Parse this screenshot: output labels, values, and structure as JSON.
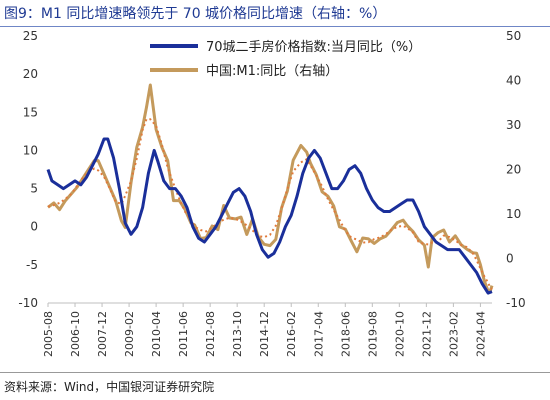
{
  "figure_title": "图9：M1 同比增速略领先于 70 城价格同比增速（右轴：%）",
  "source_note": "资料来源：Wind，中国银河证券研究院",
  "colors": {
    "series_a": "#1a2f9a",
    "series_b": "#c49a5c",
    "trend": "#e07a3a",
    "title": "#1f3a93"
  },
  "chart_data": {
    "type": "line",
    "title": "",
    "xlabel": "",
    "ylabel": "",
    "x_ticks": [
      "2005-08",
      "2006-10",
      "2007-12",
      "2009-02",
      "2010-04",
      "2011-06",
      "2012-08",
      "2013-10",
      "2014-12",
      "2016-02",
      "2017-04",
      "2018-06",
      "2019-08",
      "2020-10",
      "2021-12",
      "2023-02",
      "2024-04"
    ],
    "x_range": [
      "2005-08",
      "2024-10"
    ],
    "y_left": {
      "range": [
        -10,
        25
      ],
      "ticks": [
        -10,
        -5,
        0,
        5,
        10,
        15,
        20,
        25
      ]
    },
    "y_right": {
      "range": [
        -10,
        50
      ],
      "ticks": [
        -10,
        0,
        10,
        20,
        30,
        40,
        50
      ]
    },
    "legend_position": "top-right",
    "series": [
      {
        "name": "70城二手房价格指数:当月同比（%）",
        "axis": "left",
        "style": "solid",
        "points": [
          [
            "2005-08",
            7.5
          ],
          [
            "2005-10",
            6
          ],
          [
            "2006-01",
            5.5
          ],
          [
            "2006-04",
            5
          ],
          [
            "2006-07",
            5.5
          ],
          [
            "2006-10",
            6
          ],
          [
            "2007-01",
            5.5
          ],
          [
            "2007-04",
            6.5
          ],
          [
            "2007-07",
            8
          ],
          [
            "2007-10",
            9.5
          ],
          [
            "2008-01",
            11.5
          ],
          [
            "2008-03",
            11.5
          ],
          [
            "2008-06",
            9
          ],
          [
            "2008-09",
            5
          ],
          [
            "2008-12",
            0.5
          ],
          [
            "2009-03",
            -1
          ],
          [
            "2009-06",
            0
          ],
          [
            "2009-09",
            2.5
          ],
          [
            "2009-12",
            7
          ],
          [
            "2010-03",
            10
          ],
          [
            "2010-05",
            8.5
          ],
          [
            "2010-08",
            6
          ],
          [
            "2010-11",
            5
          ],
          [
            "2011-02",
            5
          ],
          [
            "2011-05",
            4
          ],
          [
            "2011-08",
            2.5
          ],
          [
            "2011-11",
            0
          ],
          [
            "2012-02",
            -1.5
          ],
          [
            "2012-05",
            -2
          ],
          [
            "2012-08",
            -1
          ],
          [
            "2012-11",
            0
          ],
          [
            "2013-02",
            1.5
          ],
          [
            "2013-05",
            3
          ],
          [
            "2013-08",
            4.5
          ],
          [
            "2013-11",
            5
          ],
          [
            "2014-02",
            4
          ],
          [
            "2014-05",
            2
          ],
          [
            "2014-08",
            -1
          ],
          [
            "2014-11",
            -3
          ],
          [
            "2015-02",
            -4
          ],
          [
            "2015-05",
            -3.5
          ],
          [
            "2015-08",
            -2
          ],
          [
            "2015-11",
            0
          ],
          [
            "2016-02",
            1.5
          ],
          [
            "2016-05",
            4
          ],
          [
            "2016-08",
            7
          ],
          [
            "2016-11",
            9
          ],
          [
            "2017-02",
            10
          ],
          [
            "2017-05",
            9
          ],
          [
            "2017-08",
            7
          ],
          [
            "2017-11",
            5
          ],
          [
            "2018-02",
            5
          ],
          [
            "2018-05",
            6
          ],
          [
            "2018-08",
            7.5
          ],
          [
            "2018-11",
            8
          ],
          [
            "2019-02",
            7
          ],
          [
            "2019-05",
            5
          ],
          [
            "2019-08",
            3.5
          ],
          [
            "2019-11",
            2.5
          ],
          [
            "2020-02",
            2
          ],
          [
            "2020-05",
            2
          ],
          [
            "2020-08",
            2.5
          ],
          [
            "2020-11",
            3
          ],
          [
            "2021-02",
            3.5
          ],
          [
            "2021-05",
            3.5
          ],
          [
            "2021-08",
            2
          ],
          [
            "2021-11",
            0
          ],
          [
            "2022-02",
            -1
          ],
          [
            "2022-05",
            -2
          ],
          [
            "2022-08",
            -2.5
          ],
          [
            "2022-11",
            -3
          ],
          [
            "2023-02",
            -3
          ],
          [
            "2023-05",
            -3
          ],
          [
            "2023-08",
            -4
          ],
          [
            "2023-11",
            -5
          ],
          [
            "2024-02",
            -6
          ],
          [
            "2024-05",
            -7.5
          ],
          [
            "2024-08",
            -8.7
          ],
          [
            "2024-10",
            -8.5
          ]
        ]
      },
      {
        "name": "中国:M1:同比（右轴）",
        "axis": "right",
        "style": "solid",
        "points": [
          [
            "2005-08",
            11.5
          ],
          [
            "2005-11",
            12.5
          ],
          [
            "2006-02",
            11
          ],
          [
            "2006-05",
            13
          ],
          [
            "2006-08",
            14.5
          ],
          [
            "2006-11",
            16
          ],
          [
            "2007-02",
            18
          ],
          [
            "2007-05",
            20
          ],
          [
            "2007-08",
            22
          ],
          [
            "2007-10",
            22
          ],
          [
            "2008-01",
            19
          ],
          [
            "2008-04",
            16
          ],
          [
            "2008-07",
            13
          ],
          [
            "2008-10",
            8.5
          ],
          [
            "2008-12",
            7
          ],
          [
            "2009-03",
            17
          ],
          [
            "2009-06",
            25
          ],
          [
            "2009-09",
            29.5
          ],
          [
            "2009-11",
            34
          ],
          [
            "2010-01",
            39
          ],
          [
            "2010-04",
            29
          ],
          [
            "2010-07",
            25
          ],
          [
            "2010-10",
            22
          ],
          [
            "2011-01",
            13
          ],
          [
            "2011-04",
            13
          ],
          [
            "2011-07",
            11
          ],
          [
            "2011-10",
            8
          ],
          [
            "2011-12",
            7.5
          ],
          [
            "2012-03",
            4.5
          ],
          [
            "2012-06",
            4.7
          ],
          [
            "2012-09",
            7.3
          ],
          [
            "2012-12",
            6.5
          ],
          [
            "2013-03",
            11.9
          ],
          [
            "2013-06",
            9.1
          ],
          [
            "2013-09",
            8.9
          ],
          [
            "2013-12",
            9.3
          ],
          [
            "2014-03",
            5.4
          ],
          [
            "2014-06",
            8.9
          ],
          [
            "2014-09",
            4.8
          ],
          [
            "2014-12",
            3.2
          ],
          [
            "2015-03",
            2.9
          ],
          [
            "2015-06",
            4.3
          ],
          [
            "2015-09",
            11.4
          ],
          [
            "2015-12",
            15.2
          ],
          [
            "2016-03",
            22.1
          ],
          [
            "2016-07",
            25.4
          ],
          [
            "2016-10",
            23.9
          ],
          [
            "2016-12",
            21.4
          ],
          [
            "2017-03",
            18.8
          ],
          [
            "2017-06",
            15
          ],
          [
            "2017-09",
            14
          ],
          [
            "2017-12",
            11.8
          ],
          [
            "2018-03",
            7.1
          ],
          [
            "2018-06",
            6.6
          ],
          [
            "2018-09",
            4
          ],
          [
            "2018-12",
            1.5
          ],
          [
            "2019-03",
            4.6
          ],
          [
            "2019-06",
            4.4
          ],
          [
            "2019-09",
            3.4
          ],
          [
            "2019-12",
            4.4
          ],
          [
            "2020-03",
            5
          ],
          [
            "2020-06",
            6.5
          ],
          [
            "2020-09",
            8.1
          ],
          [
            "2020-12",
            8.6
          ],
          [
            "2021-02",
            7.4
          ],
          [
            "2021-05",
            6.1
          ],
          [
            "2021-08",
            4.2
          ],
          [
            "2021-11",
            3
          ],
          [
            "2022-01",
            -1.9
          ],
          [
            "2022-03",
            4.7
          ],
          [
            "2022-06",
            5.8
          ],
          [
            "2022-09",
            6.4
          ],
          [
            "2022-12",
            3.7
          ],
          [
            "2023-03",
            5.1
          ],
          [
            "2023-06",
            3.1
          ],
          [
            "2023-09",
            2.1
          ],
          [
            "2023-12",
            1.3
          ],
          [
            "2024-02",
            1.2
          ],
          [
            "2024-04",
            -1.4
          ],
          [
            "2024-06",
            -5
          ],
          [
            "2024-08",
            -7.3
          ],
          [
            "2024-09",
            -7.4
          ],
          [
            "2024-10",
            -6.1
          ]
        ]
      }
    ],
    "trend_line": {
      "style": "dotted",
      "series": "中国:M1:同比（右轴）"
    }
  }
}
